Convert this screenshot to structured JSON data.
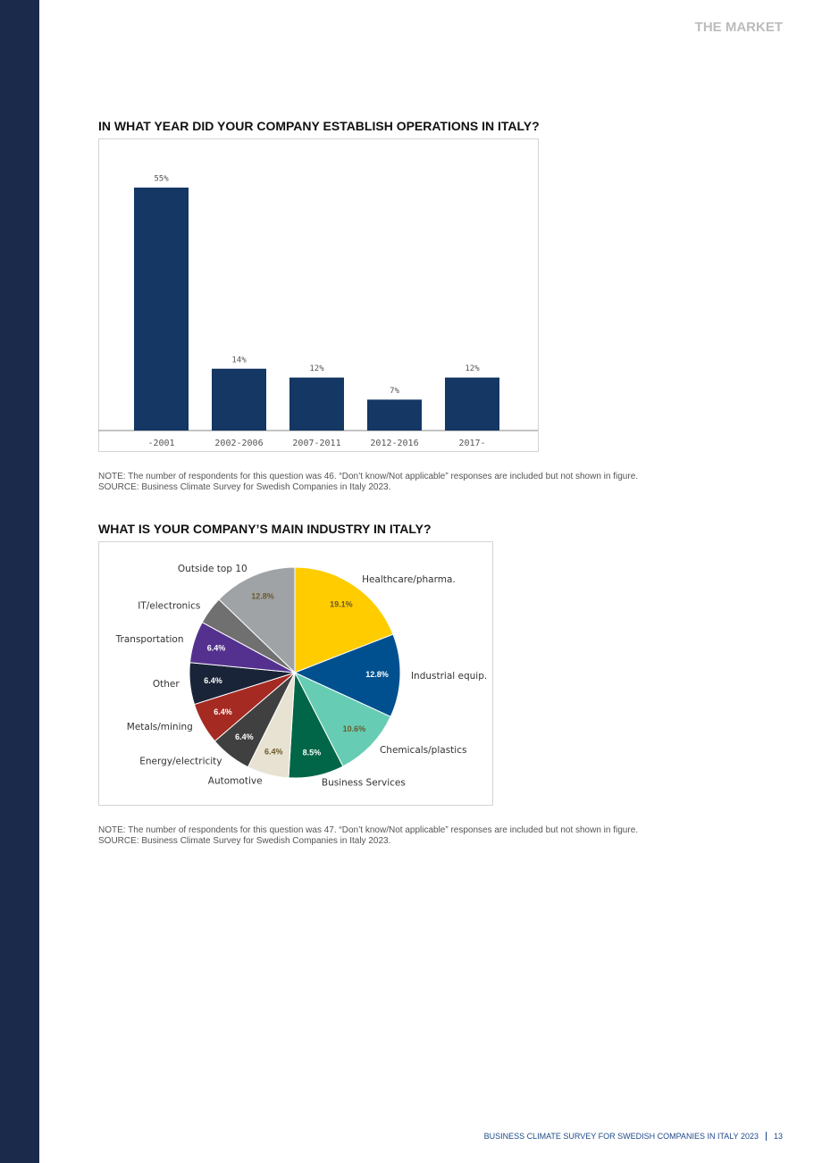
{
  "header": {
    "section": "THE MARKET"
  },
  "chart_data": [
    {
      "type": "bar",
      "title": "IN WHAT YEAR DID YOUR COMPANY ESTABLISH OPERATIONS IN ITALY?",
      "categories": [
        "-2001",
        "2002-2006",
        "2007-2011",
        "2012-2016",
        "2017-"
      ],
      "values": [
        55,
        14,
        12,
        7,
        12
      ],
      "value_labels": [
        "55%",
        "14%",
        "12%",
        "7%",
        "12%"
      ],
      "color": "#143764"
    },
    {
      "type": "pie",
      "title": "WHAT IS YOUR COMPANY’S MAIN INDUSTRY IN ITALY?",
      "categories": [
        "Healthcare/pharma.",
        "Industrial equip.",
        "Chemicals/plastics",
        "Business Services",
        "Automotive",
        "Energy/electricity",
        "Metals/mining",
        "Other",
        "Transportation",
        "IT/electronics",
        "Outside top 10"
      ],
      "values": [
        19.1,
        12.8,
        10.6,
        8.5,
        6.4,
        6.4,
        6.4,
        6.4,
        6.4,
        4.3,
        12.8
      ],
      "value_labels": [
        "19.1%",
        "12.8%",
        "10.6%",
        "8.5%",
        "6.4%",
        "6.4%",
        "6.4%",
        "6.4%",
        "6.4%",
        null,
        "12.8%"
      ],
      "colors": [
        "#ffcc00",
        "#00508f",
        "#66cdb4",
        "#006647",
        "#e8e2d2",
        "#404040",
        "#a52a22",
        "#1a2438",
        "#55318f",
        "#707070",
        "#a0a3a6"
      ]
    }
  ],
  "notes": [
    {
      "note": "NOTE: The number of respondents for this question was 46. “Don’t know/Not applicable” responses are included but not shown in figure.",
      "source": "SOURCE: Business Climate Survey for Swedish Companies in Italy 2023."
    },
    {
      "note": "NOTE: The number of respondents for this question was 47. “Don’t know/Not applicable” responses are included but not shown in figure.",
      "source": "SOURCE: Business Climate Survey for Swedish Companies in Italy 2023."
    }
  ],
  "footer": {
    "text": "BUSINESS CLIMATE SURVEY FOR SWEDISH COMPANIES IN ITALY 2023",
    "page": "13"
  }
}
